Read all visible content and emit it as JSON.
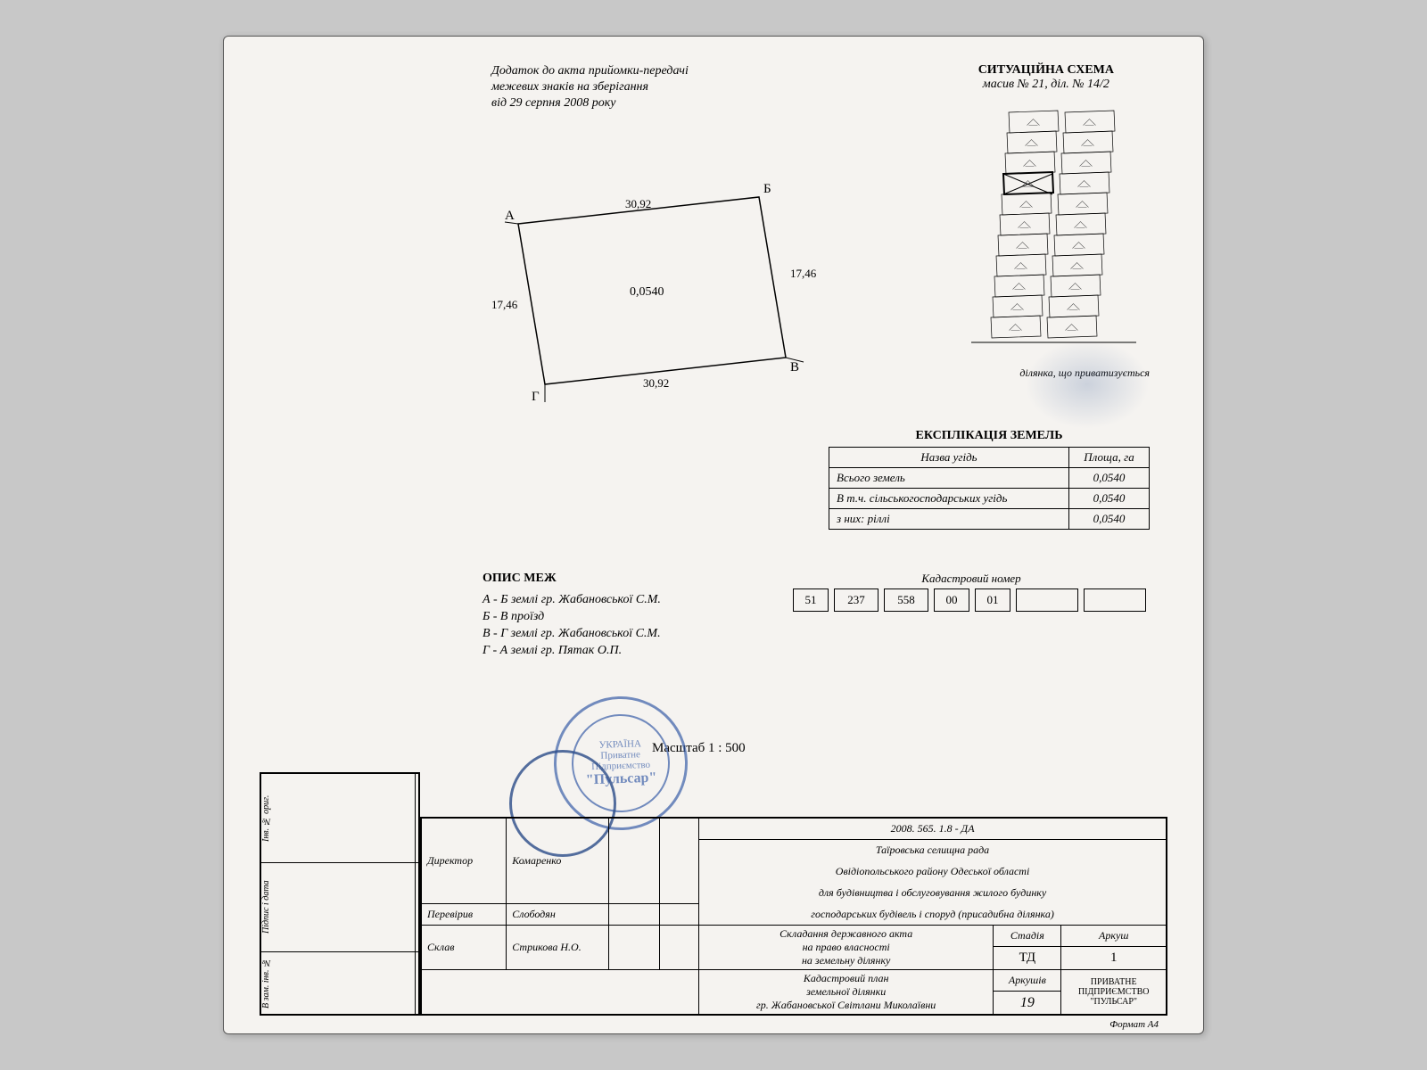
{
  "header": {
    "left_line1": "Додаток до акта прийомки-передачі",
    "left_line2": "межевих знаків на зберігання",
    "left_line3": "від 29 серпня 2008 року",
    "right_title": "СИТУАЦІЙНА СХЕМА",
    "right_sub": "масив № 21, діл. № 14/2"
  },
  "parcel": {
    "corners": {
      "A": "А",
      "B": "Б",
      "V": "В",
      "G": "Г"
    },
    "dims": {
      "AB": "30,92",
      "BV": "17,46",
      "VG": "30,92",
      "GA": "17,46"
    },
    "area": "0,0540"
  },
  "situational": {
    "rows_per_column": 11,
    "columns": 2,
    "caption": "ділянка, що приватизується",
    "highlight_row": 3,
    "highlight_col": 0
  },
  "explication": {
    "title": "ЕКСПЛІКАЦІЯ ЗЕМЕЛЬ",
    "headers": [
      "Назва угідь",
      "Площа, га"
    ],
    "rows": [
      [
        "Всього земель",
        "0,0540"
      ],
      [
        "В т.ч. сільськогосподарських угідь",
        "0,0540"
      ],
      [
        "з них: ріллі",
        "0,0540"
      ]
    ]
  },
  "kadastr": {
    "title": "Кадастровий номер",
    "cells": [
      "51",
      "237",
      "558",
      "00",
      "01",
      "",
      ""
    ]
  },
  "opys": {
    "title": "ОПИС  МЕЖ",
    "rows": [
      "А - Б  землі гр. Жабановської С.М.",
      "Б - В  проїзд",
      "В - Г  землі гр. Жабановської С.М.",
      "Г - А  землі гр. Пятак О.П."
    ]
  },
  "scale": "Масштаб 1 : 500",
  "stamp": {
    "line1": "УКРАЇНА",
    "line2": "Приватне",
    "line3": "Підприємство",
    "name": "\"Пульсар\""
  },
  "title_block": {
    "code": "2008. 565. 1.8 - ДА",
    "org1": "Таїровська селищна рада",
    "org2": "Овідіопольського району Одеської області",
    "org3": "для будівництва і обслуговування жилого будинку",
    "org4": "господарських будівель і споруд (присадибна ділянка)",
    "doc1": "Складання державного акта",
    "doc2": "на право власності",
    "doc3": "на земельну ділянку",
    "cad1": "Кадастровий план",
    "cad2": "земельної ділянки",
    "cad3": "гр. Жабановської Світлани Миколаївни",
    "stage_h": "Стадія",
    "stage": "ТД",
    "sheet_h": "Аркуш",
    "sheet": "1",
    "sheets_h": "Аркушів",
    "sheets": "19",
    "firm1": "ПРИВАТНЕ ПІДПРИЄМСТВО",
    "firm2": "\"ПУЛЬСАР\"",
    "roles": {
      "dir": "Директор",
      "chk": "Перевірив",
      "made": "Склав"
    },
    "name1": "Комаренко",
    "name2": "Слободян",
    "name3": "Стрикова Н.О."
  },
  "left_margin": {
    "r1": "Інв. № ориг.",
    "r2": "Підпис і дата",
    "r3": "В зам. інв. №"
  },
  "format": "Формат А4"
}
